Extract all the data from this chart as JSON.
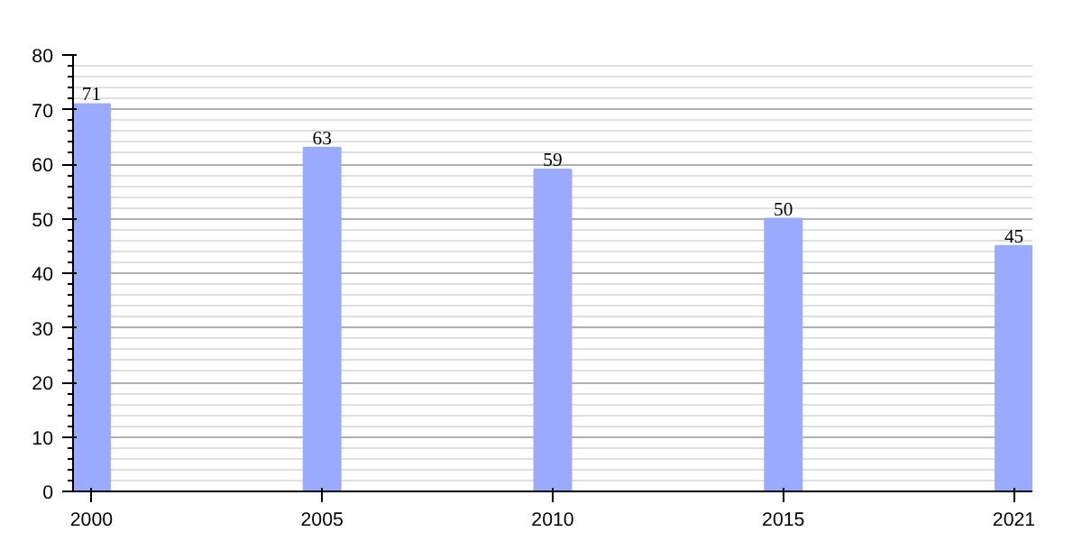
{
  "chart_data": {
    "type": "bar",
    "categories": [
      "2000",
      "2005",
      "2010",
      "2015",
      "2021"
    ],
    "values": [
      71,
      63,
      59,
      50,
      45
    ],
    "color": "#99aaff",
    "ylim": [
      0,
      80
    ],
    "yticks": [
      0,
      10,
      20,
      30,
      40,
      50,
      60,
      70,
      80
    ],
    "grid": "y",
    "data_labels": true
  }
}
